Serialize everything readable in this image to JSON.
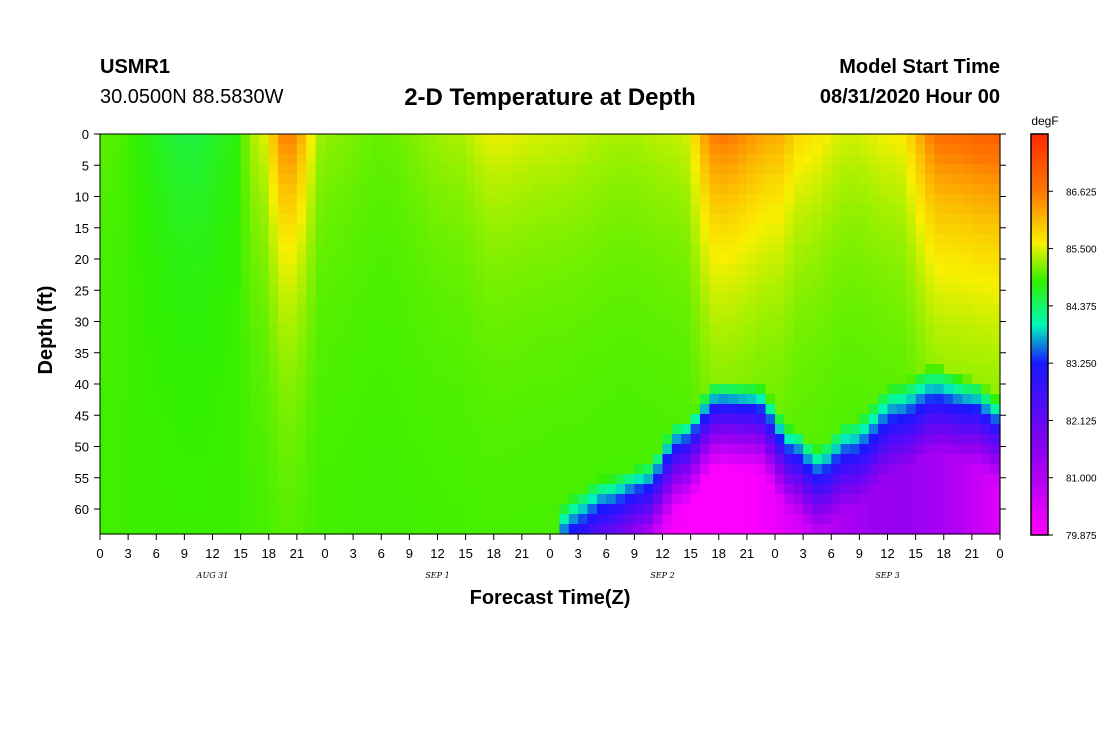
{
  "header": {
    "station_id": "USMR1",
    "coordinates": "30.0500N 88.5830W",
    "title": "2-D Temperature at Depth",
    "model_start_label": "Model Start Time",
    "model_start_value": "08/31/2020 Hour 00"
  },
  "chart_data": {
    "type": "heatmap",
    "title": "2-D Temperature at Depth",
    "xlabel": "Forecast Time(Z)",
    "ylabel": "Depth (ft)",
    "colorbar_units": "degF",
    "x_hours_range": [
      0,
      96
    ],
    "y_depth_range": [
      0,
      64
    ],
    "x_tick_labels": [
      "0",
      "3",
      "6",
      "9",
      "12",
      "15",
      "18",
      "21",
      "0",
      "3",
      "6",
      "9",
      "12",
      "15",
      "18",
      "21",
      "0",
      "3",
      "6",
      "9",
      "12",
      "15",
      "18",
      "21",
      "0",
      "3",
      "6",
      "9",
      "12",
      "15",
      "18",
      "21",
      "0"
    ],
    "x_day_labels": [
      {
        "label": "AUG 31",
        "hour": 12
      },
      {
        "label": "SEP 1",
        "hour": 36
      },
      {
        "label": "SEP 2",
        "hour": 60
      },
      {
        "label": "SEP 3",
        "hour": 84
      }
    ],
    "y_tick_labels": [
      "0",
      "5",
      "10",
      "15",
      "20",
      "25",
      "30",
      "35",
      "40",
      "45",
      "50",
      "55",
      "60"
    ],
    "y_tick_values": [
      0,
      5,
      10,
      15,
      20,
      25,
      30,
      35,
      40,
      45,
      50,
      55,
      60
    ],
    "colorbar_tick_labels": [
      "86.625",
      "85.500",
      "84.375",
      "83.250",
      "82.125",
      "81.000",
      "79.875"
    ],
    "colorbar_tick_values": [
      86.625,
      85.5,
      84.375,
      83.25,
      82.125,
      81.0,
      79.875
    ],
    "color_range": [
      79.875,
      87.75
    ],
    "colors": {
      "hot": "#ff2a00",
      "orange": "#ff7a00",
      "yellow": "#f8f000",
      "green": "#30f000",
      "cyan": "#00f8b8",
      "blue": "#1818ff",
      "purple": "#8a00f0",
      "magenta": "#ff00ff"
    },
    "surface_temperature_keypoints": [
      {
        "hour": 0,
        "temp": 85.0
      },
      {
        "hour": 10,
        "temp": 84.55
      },
      {
        "hour": 14,
        "temp": 84.75
      },
      {
        "hour": 17,
        "temp": 85.4
      },
      {
        "hour": 20,
        "temp": 86.6
      },
      {
        "hour": 24,
        "temp": 85.2
      },
      {
        "hour": 30,
        "temp": 85.05
      },
      {
        "hour": 38,
        "temp": 85.3
      },
      {
        "hour": 42,
        "temp": 85.55
      },
      {
        "hour": 48,
        "temp": 85.45
      },
      {
        "hour": 56,
        "temp": 85.3
      },
      {
        "hour": 62,
        "temp": 85.4
      },
      {
        "hour": 66,
        "temp": 86.65
      },
      {
        "hour": 72,
        "temp": 86.2
      },
      {
        "hour": 75,
        "temp": 85.75
      },
      {
        "hour": 80,
        "temp": 85.45
      },
      {
        "hour": 85,
        "temp": 85.6
      },
      {
        "hour": 90,
        "temp": 86.8
      },
      {
        "hour": 96,
        "temp": 87.0
      }
    ],
    "thermocline_top_depth_keypoints": [
      {
        "hour": 0,
        "depth": 70
      },
      {
        "hour": 48,
        "depth": 70
      },
      {
        "hour": 50,
        "depth": 62
      },
      {
        "hour": 54,
        "depth": 59
      },
      {
        "hour": 58,
        "depth": 57
      },
      {
        "hour": 62,
        "depth": 50
      },
      {
        "hour": 66,
        "depth": 43.5
      },
      {
        "hour": 70,
        "depth": 44
      },
      {
        "hour": 74,
        "depth": 51
      },
      {
        "hour": 76.5,
        "depth": 54
      },
      {
        "hour": 80,
        "depth": 50
      },
      {
        "hour": 85,
        "depth": 44
      },
      {
        "hour": 89,
        "depth": 41
      },
      {
        "hour": 93,
        "depth": 43
      },
      {
        "hour": 96,
        "depth": 46
      }
    ]
  }
}
